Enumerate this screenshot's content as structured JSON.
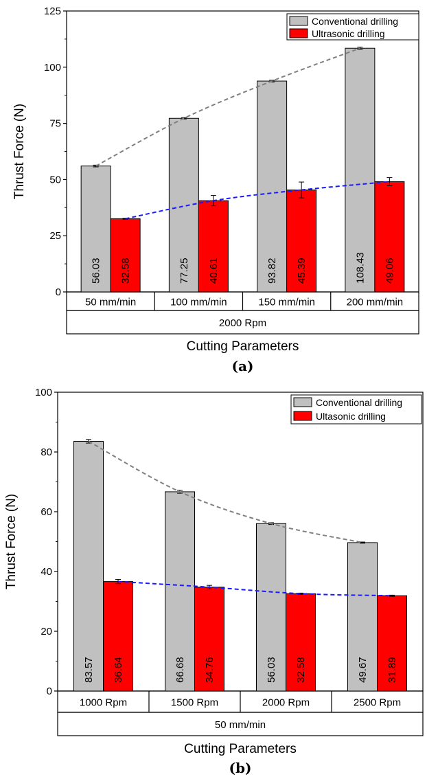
{
  "chart_data": [
    {
      "type": "bar",
      "panel_label": "(a)",
      "xlabel": "Cutting Parameters",
      "ylabel": "Thrust Force (N)",
      "ylim": [
        0,
        125
      ],
      "yticks": [
        0,
        25,
        50,
        75,
        100,
        125
      ],
      "categories": [
        "50 mm/min",
        "100 mm/min",
        "150 mm/min",
        "200 mm/min"
      ],
      "group_label": "2000 Rpm",
      "legend_position": "top-right",
      "grid": false,
      "series": [
        {
          "name": "Conventional drilling",
          "color": "#c0c0c0",
          "trend_color": "#808080",
          "values": [
            56.03,
            77.25,
            93.82,
            108.43
          ],
          "labels": [
            "56.03",
            "77.25",
            "93.82",
            "108.43"
          ],
          "errors": [
            0.4,
            0.3,
            0.4,
            0.5
          ]
        },
        {
          "name": "Ultrasonic drilling",
          "color": "#ff0000",
          "trend_color": "#1a1aff",
          "values": [
            32.58,
            40.61,
            45.39,
            49.06
          ],
          "labels": [
            "32.58",
            "40.61",
            "45.39",
            "49.06"
          ],
          "errors": [
            0.2,
            2.3,
            3.5,
            1.8
          ]
        }
      ]
    },
    {
      "type": "bar",
      "panel_label": "(b)",
      "xlabel": "Cutting Parameters",
      "ylabel": "Thrust Force (N)",
      "ylim": [
        0,
        100
      ],
      "yticks": [
        0,
        20,
        40,
        60,
        80,
        100
      ],
      "categories": [
        "1000 Rpm",
        "1500 Rpm",
        "2000 Rpm",
        "2500 Rpm"
      ],
      "group_label": "50 mm/min",
      "legend_position": "top-right",
      "grid": false,
      "series": [
        {
          "name": "Conventional drilling",
          "color": "#c0c0c0",
          "trend_color": "#808080",
          "values": [
            83.57,
            66.68,
            56.03,
            49.67
          ],
          "labels": [
            "83.57",
            "66.68",
            "56.03",
            "49.67"
          ],
          "errors": [
            0.6,
            0.5,
            0.3,
            0.2
          ]
        },
        {
          "name": "Ultasonic drilling",
          "color": "#ff0000",
          "trend_color": "#1a1aff",
          "values": [
            36.64,
            34.76,
            32.58,
            31.89
          ],
          "labels": [
            "36.64",
            "34.76",
            "32.58",
            "31.89"
          ],
          "errors": [
            0.7,
            0.6,
            0.2,
            0.2
          ]
        }
      ]
    }
  ]
}
